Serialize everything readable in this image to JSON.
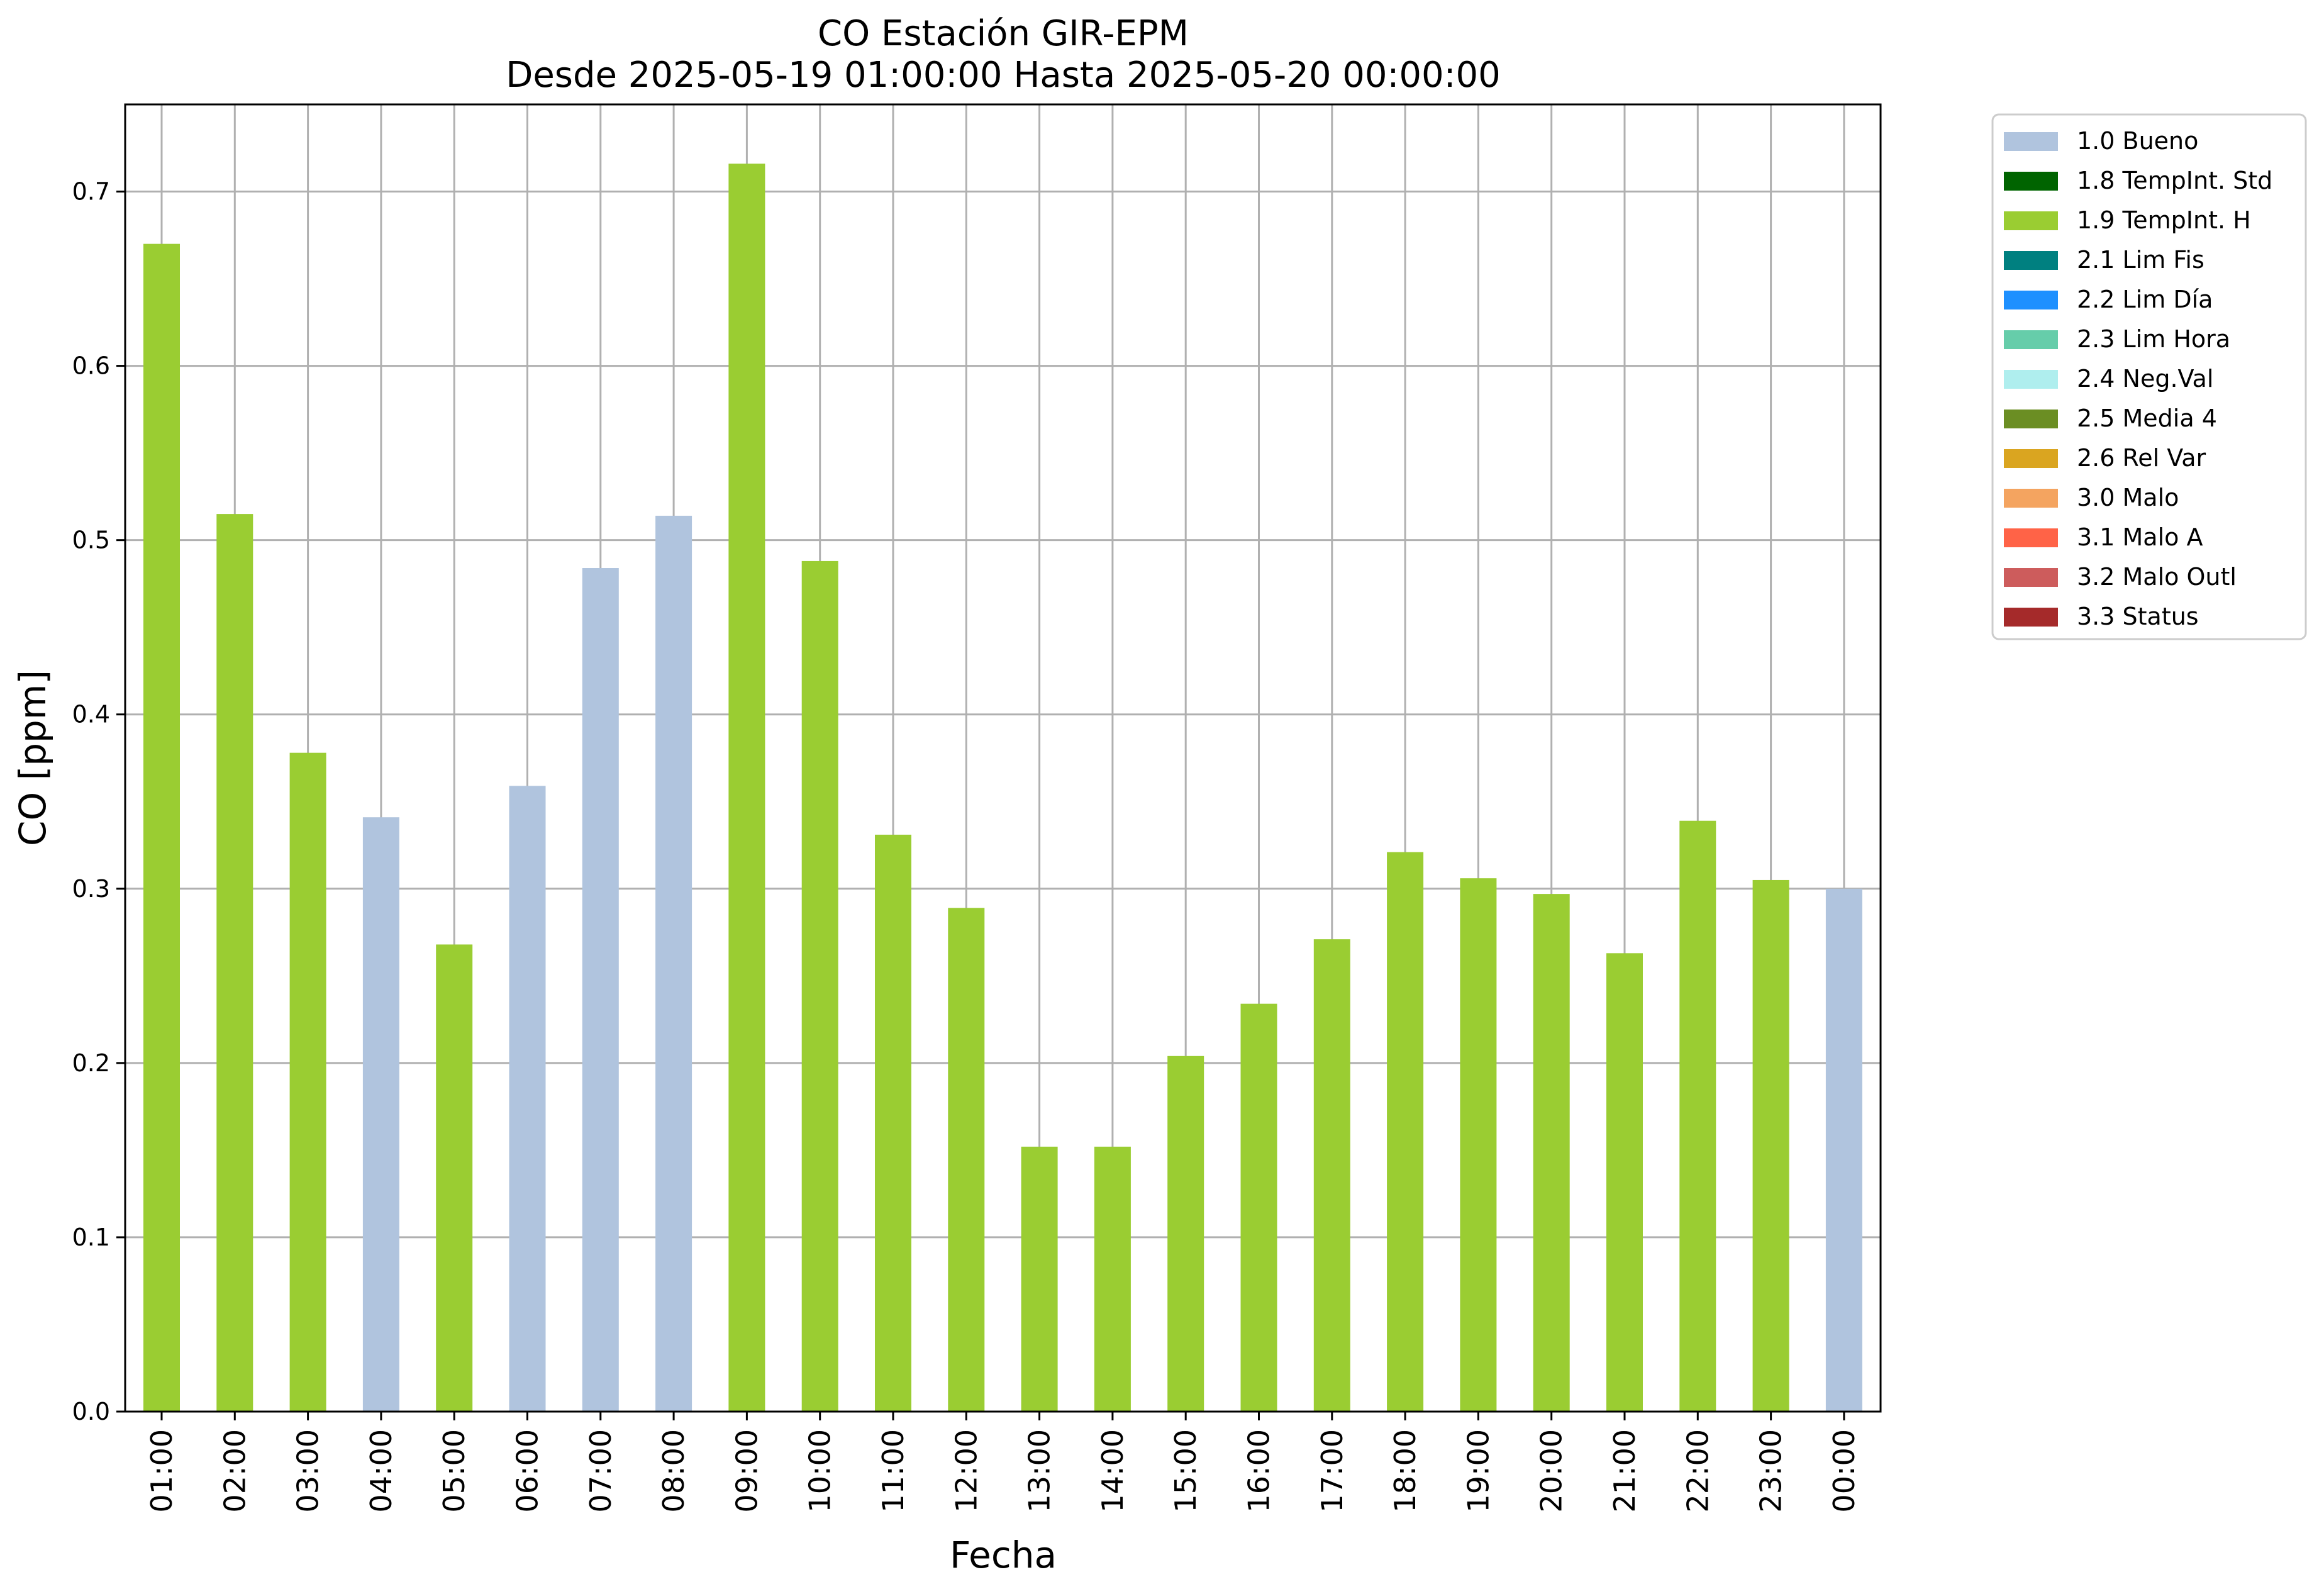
{
  "chart_data": {
    "type": "bar",
    "title": "CO Estación GIR-EPM",
    "subtitle": "Desde 2025-05-19 01:00:00 Hasta 2025-05-20 00:00:00",
    "xlabel": "Fecha",
    "ylabel": "CO [ppm]",
    "ylim": [
      0,
      0.75
    ],
    "yticks": [
      "0.0",
      "0.1",
      "0.2",
      "0.3",
      "0.4",
      "0.5",
      "0.6",
      "0.7"
    ],
    "grid": true,
    "legend_position": "outside-top-right",
    "categories": [
      "01:00",
      "02:00",
      "03:00",
      "04:00",
      "05:00",
      "06:00",
      "07:00",
      "08:00",
      "09:00",
      "10:00",
      "11:00",
      "12:00",
      "13:00",
      "14:00",
      "15:00",
      "16:00",
      "17:00",
      "18:00",
      "19:00",
      "20:00",
      "21:00",
      "22:00",
      "23:00",
      "00:00"
    ],
    "values": [
      0.67,
      0.515,
      0.378,
      0.341,
      0.268,
      0.359,
      0.484,
      0.514,
      0.716,
      0.488,
      0.331,
      0.289,
      0.152,
      0.152,
      0.204,
      0.234,
      0.271,
      0.321,
      0.306,
      0.297,
      0.263,
      0.339,
      0.305,
      0.3
    ],
    "flags": [
      "1.9",
      "1.9",
      "1.9",
      "1.0",
      "1.9",
      "1.0",
      "1.0",
      "1.0",
      "1.9",
      "1.9",
      "1.9",
      "1.9",
      "1.9",
      "1.9",
      "1.9",
      "1.9",
      "1.9",
      "1.9",
      "1.9",
      "1.9",
      "1.9",
      "1.9",
      "1.9",
      "1.0"
    ],
    "legend": [
      {
        "code": "1.0",
        "label": "1.0 Bueno",
        "color": "#b0c4de"
      },
      {
        "code": "1.8",
        "label": "1.8 TempInt. Std",
        "color": "#006400"
      },
      {
        "code": "1.9",
        "label": "1.9 TempInt. H",
        "color": "#9acd32"
      },
      {
        "code": "2.1",
        "label": "2.1 Lim Fis",
        "color": "#008080"
      },
      {
        "code": "2.2",
        "label": "2.2 Lim Día",
        "color": "#1e90ff"
      },
      {
        "code": "2.3",
        "label": "2.3 Lim Hora",
        "color": "#66cdaa"
      },
      {
        "code": "2.4",
        "label": "2.4 Neg.Val",
        "color": "#afeeee"
      },
      {
        "code": "2.5",
        "label": "2.5 Media 4",
        "color": "#6b8e23"
      },
      {
        "code": "2.6",
        "label": "2.6 Rel Var",
        "color": "#daa520"
      },
      {
        "code": "3.0",
        "label": "3.0 Malo",
        "color": "#f4a460"
      },
      {
        "code": "3.1",
        "label": "3.1 Malo A",
        "color": "#ff6347"
      },
      {
        "code": "3.2",
        "label": "3.2 Malo Outl",
        "color": "#cd5c5c"
      },
      {
        "code": "3.3",
        "label": "3.3 Status",
        "color": "#a52a2a"
      }
    ]
  }
}
